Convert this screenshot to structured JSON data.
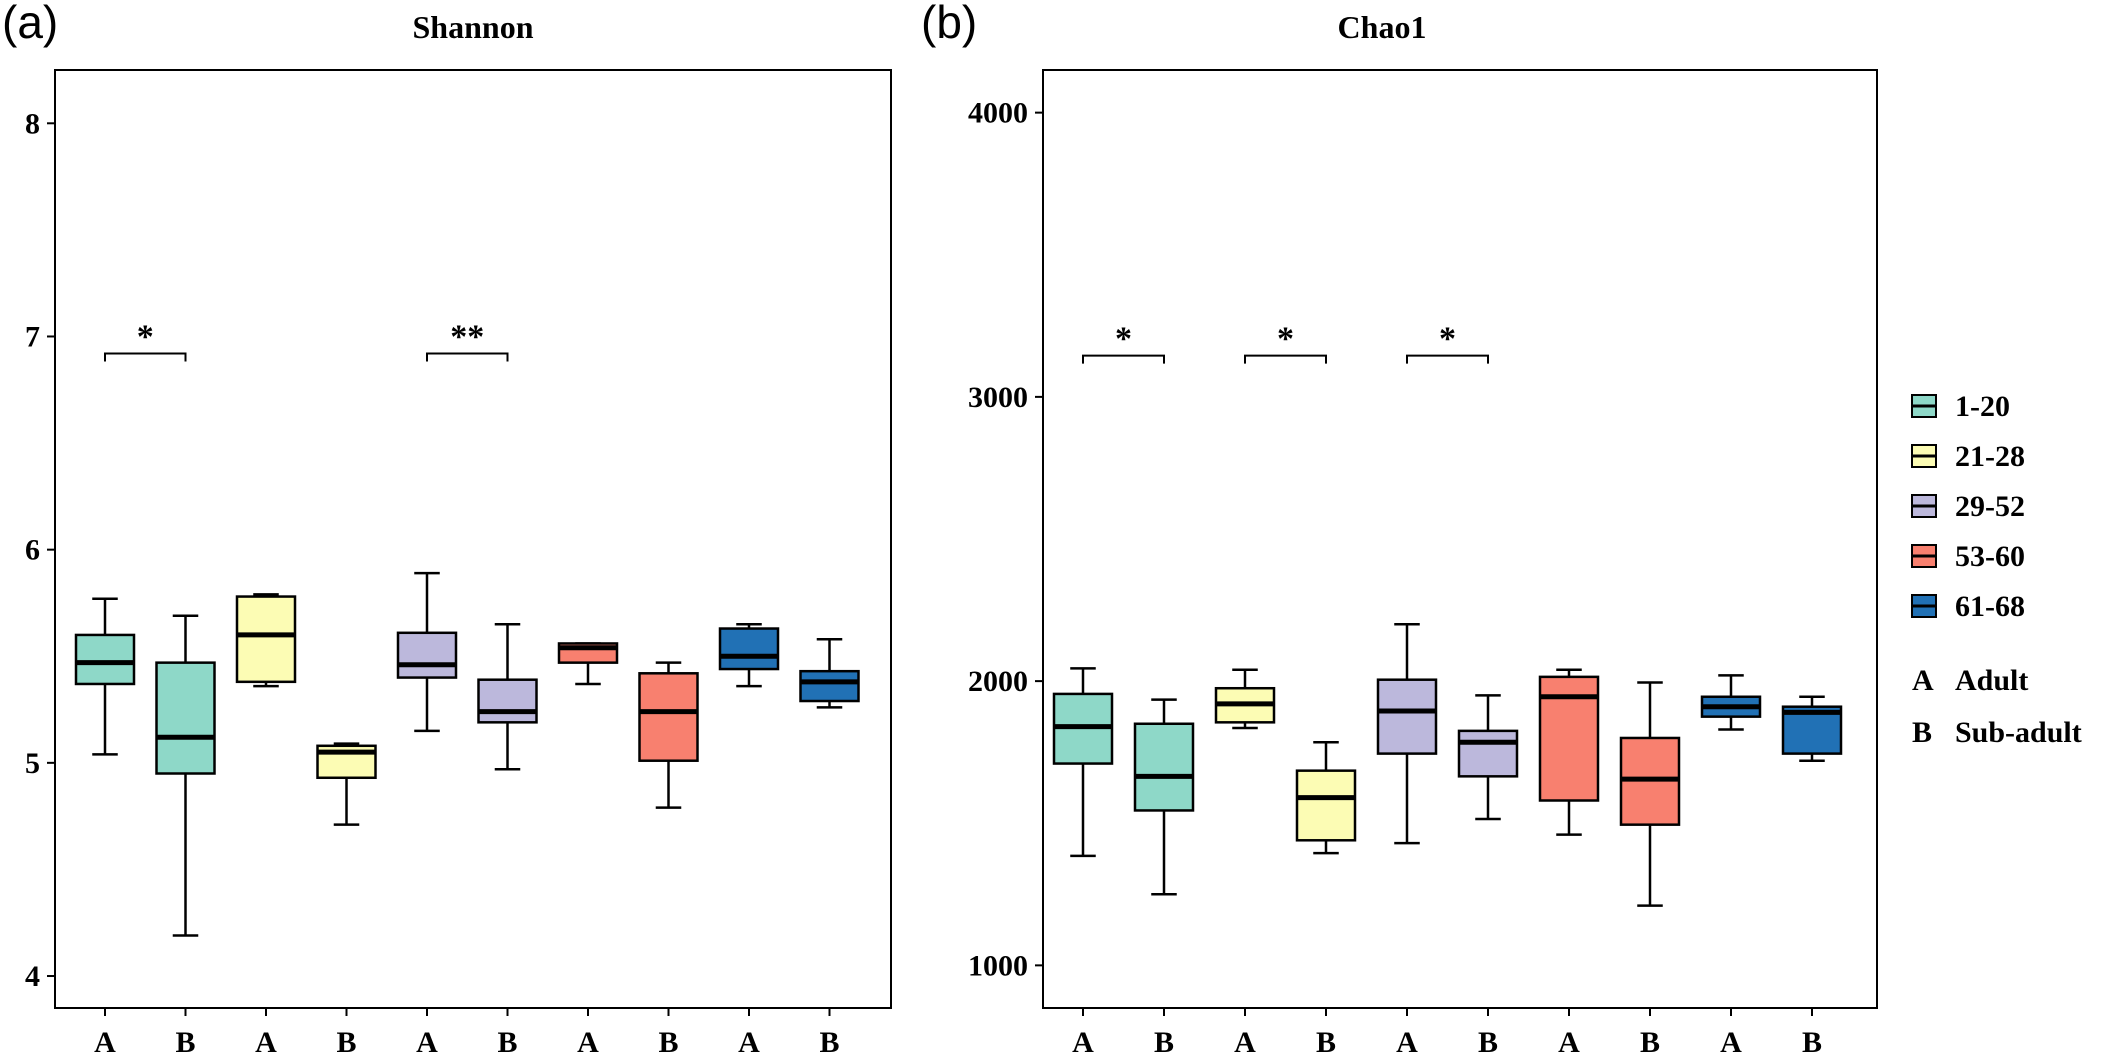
{
  "legend": {
    "groups": [
      {
        "label": "1-20",
        "color": "#8ed8c8"
      },
      {
        "label": "21-28",
        "color": "#fcfcb4"
      },
      {
        "label": "29-52",
        "color": "#bcb8dc"
      },
      {
        "label": "53-60",
        "color": "#f8806f"
      },
      {
        "label": "61-68",
        "color": "#2171b5"
      }
    ],
    "keys": [
      {
        "letter": "A",
        "text": "Adult"
      },
      {
        "letter": "B",
        "text": "Sub-adult"
      }
    ]
  },
  "chart_data": [
    {
      "type": "box",
      "panel_label": "(a)",
      "title": "Shannon",
      "ylim": [
        3.85,
        8.25
      ],
      "yticks": [
        4,
        5,
        6,
        7,
        8
      ],
      "categories": [
        "A",
        "B",
        "A",
        "B",
        "A",
        "B",
        "A",
        "B",
        "A",
        "B"
      ],
      "boxes": [
        {
          "category": "A",
          "group": "1-20",
          "min": 5.04,
          "q1": 5.37,
          "median": 5.47,
          "q3": 5.6,
          "max": 5.77
        },
        {
          "category": "B",
          "group": "1-20",
          "min": 4.19,
          "q1": 4.95,
          "median": 5.12,
          "q3": 5.47,
          "max": 5.69
        },
        {
          "category": "A",
          "group": "21-28",
          "min": 5.36,
          "q1": 5.38,
          "median": 5.6,
          "q3": 5.78,
          "max": 5.79
        },
        {
          "category": "B",
          "group": "21-28",
          "min": 4.71,
          "q1": 4.93,
          "median": 5.05,
          "q3": 5.08,
          "max": 5.09
        },
        {
          "category": "A",
          "group": "29-52",
          "min": 5.15,
          "q1": 5.4,
          "median": 5.46,
          "q3": 5.61,
          "max": 5.89
        },
        {
          "category": "B",
          "group": "29-52",
          "min": 4.97,
          "q1": 5.19,
          "median": 5.24,
          "q3": 5.39,
          "max": 5.65
        },
        {
          "category": "A",
          "group": "53-60",
          "min": 5.37,
          "q1": 5.47,
          "median": 5.54,
          "q3": 5.56,
          "max": 5.56
        },
        {
          "category": "B",
          "group": "53-60",
          "min": 4.79,
          "q1": 5.01,
          "median": 5.24,
          "q3": 5.42,
          "max": 5.47
        },
        {
          "category": "A",
          "group": "61-68",
          "min": 5.36,
          "q1": 5.44,
          "median": 5.5,
          "q3": 5.63,
          "max": 5.65
        },
        {
          "category": "B",
          "group": "61-68",
          "min": 5.26,
          "q1": 5.29,
          "median": 5.38,
          "q3": 5.43,
          "max": 5.58
        }
      ],
      "significance": [
        {
          "from": 0,
          "to": 1,
          "value": 6.92,
          "label": "*"
        },
        {
          "from": 4,
          "to": 5,
          "value": 6.92,
          "label": "**"
        }
      ]
    },
    {
      "type": "box",
      "panel_label": "(b)",
      "title": "Chao1",
      "ylim": [
        850,
        4150
      ],
      "yticks": [
        1000,
        2000,
        3000,
        4000
      ],
      "categories": [
        "A",
        "B",
        "A",
        "B",
        "A",
        "B",
        "A",
        "B",
        "A",
        "B"
      ],
      "boxes": [
        {
          "category": "A",
          "group": "1-20",
          "min": 1385,
          "q1": 1710,
          "median": 1840,
          "q3": 1955,
          "max": 2045
        },
        {
          "category": "B",
          "group": "1-20",
          "min": 1250,
          "q1": 1545,
          "median": 1665,
          "q3": 1850,
          "max": 1935
        },
        {
          "category": "A",
          "group": "21-28",
          "min": 1835,
          "q1": 1855,
          "median": 1920,
          "q3": 1975,
          "max": 2040
        },
        {
          "category": "B",
          "group": "21-28",
          "min": 1395,
          "q1": 1440,
          "median": 1590,
          "q3": 1685,
          "max": 1785
        },
        {
          "category": "A",
          "group": "29-52",
          "min": 1430,
          "q1": 1745,
          "median": 1895,
          "q3": 2005,
          "max": 2200
        },
        {
          "category": "B",
          "group": "29-52",
          "min": 1515,
          "q1": 1665,
          "median": 1785,
          "q3": 1825,
          "max": 1950
        },
        {
          "category": "A",
          "group": "53-60",
          "min": 1460,
          "q1": 1580,
          "median": 1945,
          "q3": 2015,
          "max": 2040
        },
        {
          "category": "B",
          "group": "53-60",
          "min": 1210,
          "q1": 1495,
          "median": 1655,
          "q3": 1800,
          "max": 1995
        },
        {
          "category": "A",
          "group": "61-68",
          "min": 1830,
          "q1": 1875,
          "median": 1910,
          "q3": 1945,
          "max": 2020
        },
        {
          "category": "B",
          "group": "61-68",
          "min": 1720,
          "q1": 1745,
          "median": 1890,
          "q3": 1910,
          "max": 1945
        }
      ],
      "significance": [
        {
          "from": 0,
          "to": 1,
          "value": 3145,
          "label": "*"
        },
        {
          "from": 2,
          "to": 3,
          "value": 3145,
          "label": "*"
        },
        {
          "from": 4,
          "to": 5,
          "value": 3145,
          "label": "*"
        }
      ]
    }
  ]
}
